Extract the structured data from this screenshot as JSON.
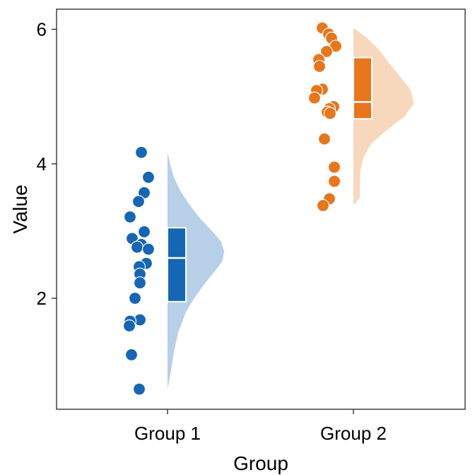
{
  "chart_data": {
    "type": "raincloud",
    "xlabel": "Group",
    "ylabel": "Value",
    "categories": [
      "Group 1",
      "Group 2"
    ],
    "ylim": [
      0.35,
      6.3
    ],
    "yticks": [
      "2",
      "4",
      "6"
    ],
    "grid": false,
    "legend": "none",
    "series": [
      {
        "name": "Group 1",
        "color": "#1766B5",
        "light_color": "#B8CFE8",
        "points": [
          4.17,
          3.8,
          3.57,
          3.44,
          3.21,
          2.99,
          2.89,
          2.8,
          2.76,
          2.73,
          2.52,
          2.47,
          2.36,
          2.23,
          2.0,
          1.68,
          1.66,
          1.59,
          1.16,
          0.65
        ],
        "box": {
          "q1": 1.95,
          "median": 2.6,
          "q3": 3.05
        },
        "density": {
          "y": [
            0.65,
            0.9,
            1.2,
            1.5,
            1.8,
            2.0,
            2.2,
            2.4,
            2.55,
            2.7,
            2.85,
            3.0,
            3.2,
            3.4,
            3.6,
            3.8,
            4.0,
            4.17
          ],
          "d": [
            0.0,
            0.05,
            0.1,
            0.17,
            0.29,
            0.42,
            0.57,
            0.74,
            0.86,
            0.89,
            0.84,
            0.7,
            0.5,
            0.34,
            0.2,
            0.1,
            0.04,
            0.0
          ]
        }
      },
      {
        "name": "Group 2",
        "color": "#E8761C",
        "light_color": "#F8D8BC",
        "points": [
          6.02,
          5.93,
          5.87,
          5.75,
          5.67,
          5.55,
          5.45,
          5.11,
          5.09,
          4.98,
          4.85,
          4.82,
          4.77,
          4.75,
          4.37,
          3.95,
          3.74,
          3.48,
          3.38
        ],
        "box": {
          "q1": 4.67,
          "median": 4.92,
          "q3": 5.58
        },
        "density": {
          "y": [
            3.38,
            3.5,
            3.7,
            3.9,
            4.1,
            4.3,
            4.5,
            4.7,
            4.9,
            5.1,
            5.3,
            5.5,
            5.7,
            5.9,
            6.02
          ],
          "d": [
            0.0,
            0.1,
            0.1,
            0.11,
            0.16,
            0.28,
            0.52,
            0.8,
            0.95,
            0.9,
            0.73,
            0.56,
            0.4,
            0.18,
            0.0
          ]
        }
      }
    ]
  }
}
